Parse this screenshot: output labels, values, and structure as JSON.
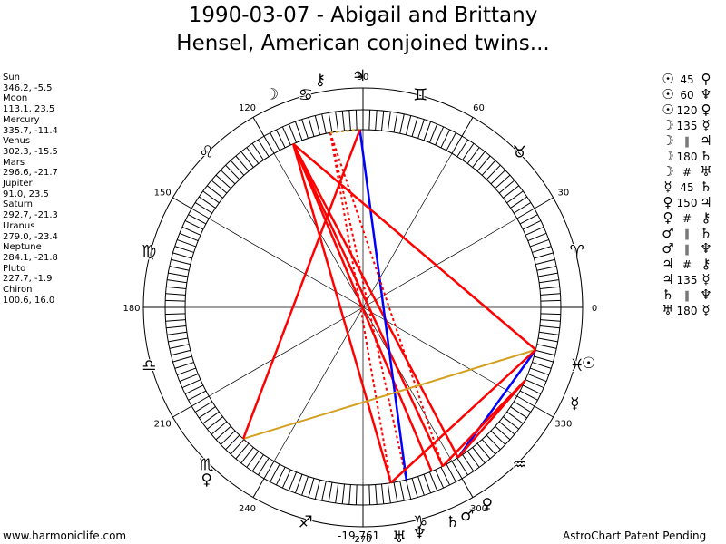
{
  "title_line1": "1990-03-07 - Abigail and Brittany",
  "title_line2": "Hensel, American conjoined twins...",
  "planets": [
    {
      "name": "Sun",
      "coords": "346.2, -5.5"
    },
    {
      "name": "Moon",
      "coords": "113.1, 23.5"
    },
    {
      "name": "Mercury",
      "coords": "335.7, -11.4"
    },
    {
      "name": "Venus",
      "coords": "302.3, -15.5"
    },
    {
      "name": "Mars",
      "coords": "296.6, -21.7"
    },
    {
      "name": "Jupiter",
      "coords": "91.0, 23.5"
    },
    {
      "name": "Saturn",
      "coords": "292.7, -21.3"
    },
    {
      "name": "Uranus",
      "coords": "279.0, -23.4"
    },
    {
      "name": "Neptune",
      "coords": "284.1, -21.8"
    },
    {
      "name": "Pluto",
      "coords": "227.7, -1.9"
    },
    {
      "name": "Chiron",
      "coords": "100.6, 16.0"
    }
  ],
  "aspects": [
    {
      "p1": "☉",
      "asp": "45",
      "p2": "♀"
    },
    {
      "p1": "☉",
      "asp": "60",
      "p2": "♆"
    },
    {
      "p1": "☉",
      "asp": "120",
      "p2": "♀"
    },
    {
      "p1": "☽",
      "asp": "135",
      "p2": "☿"
    },
    {
      "p1": "☽",
      "asp": "∥",
      "p2": "♃"
    },
    {
      "p1": "☽",
      "asp": "180",
      "p2": "♄"
    },
    {
      "p1": "☽",
      "asp": "#",
      "p2": "♅"
    },
    {
      "p1": "☿",
      "asp": "45",
      "p2": "♄"
    },
    {
      "p1": "♀",
      "asp": "150",
      "p2": "♃"
    },
    {
      "p1": "♀",
      "asp": "#",
      "p2": "⚷"
    },
    {
      "p1": "♂",
      "asp": "∥",
      "p2": "♄"
    },
    {
      "p1": "♂",
      "asp": "∥",
      "p2": "♆"
    },
    {
      "p1": "♃",
      "asp": "#",
      "p2": "⚷"
    },
    {
      "p1": "♃",
      "asp": "135",
      "p2": "☿"
    },
    {
      "p1": "♄",
      "asp": "∥",
      "p2": "♆"
    },
    {
      "p1": "♅",
      "asp": "180",
      "p2": "☿"
    }
  ],
  "degree_labels": [
    "0",
    "30",
    "60",
    "90",
    "120",
    "150",
    "180",
    "210",
    "240",
    "270",
    "300",
    "330"
  ],
  "sign_glyphs": [
    "♈",
    "♉",
    "♊",
    "♋",
    "♌",
    "♍",
    "♎",
    "♏",
    "♐",
    "♑",
    "♒",
    "♓"
  ],
  "chart_planets": [
    {
      "glyph": "☉",
      "lon": 346.2
    },
    {
      "glyph": "☽",
      "lon": 113.1
    },
    {
      "glyph": "☿",
      "lon": 335.7
    },
    {
      "glyph": "♀",
      "lon": 302.3
    },
    {
      "glyph": "♂",
      "lon": 296.6
    },
    {
      "glyph": "♃",
      "lon": 91.0
    },
    {
      "glyph": "♄",
      "lon": 292.7
    },
    {
      "glyph": "♅",
      "lon": 279.0
    },
    {
      "glyph": "♆",
      "lon": 284.1
    },
    {
      "glyph": "♀",
      "lon": 227.7
    },
    {
      "glyph": "⚷",
      "lon": 100.6
    }
  ],
  "colors": {
    "red": "#ff0000",
    "blue": "#0000ff",
    "gold": "#d4a020"
  },
  "footer_left": "www.harmoniclife.com",
  "footer_center": "-19,761",
  "footer_right": "AstroChart Patent Pending"
}
